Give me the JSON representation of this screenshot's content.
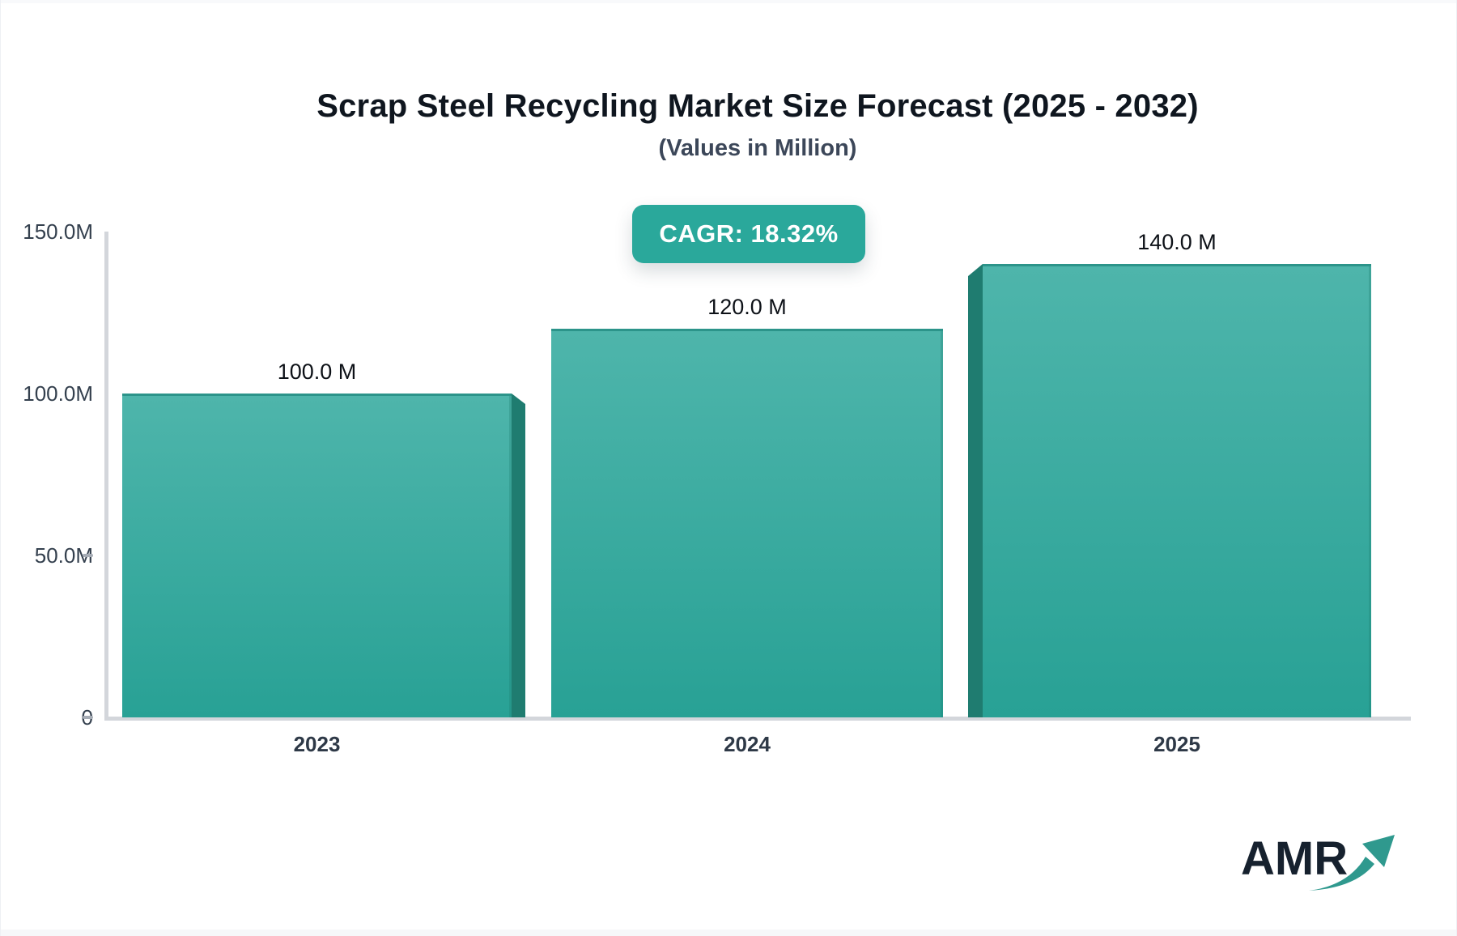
{
  "page": {
    "title": "Scrap Steel Recycling Market Size Forecast (2025 - 2032)",
    "subtitle": "(Values in Million)",
    "cagr_badge": "CAGR: 18.32%",
    "badge_color": "#2aa89b"
  },
  "chart_data": {
    "type": "bar",
    "title": "Scrap Steel Recycling Market Size Forecast (2025 - 2032)",
    "subtitle": "(Values in Million)",
    "categories": [
      "2023",
      "2024",
      "2025"
    ],
    "values": [
      100,
      120,
      140
    ],
    "value_labels": [
      "100.0 M",
      "120.0 M",
      "140.0 M"
    ],
    "unit": "Million",
    "ylim": [
      0,
      150
    ],
    "yticks": [
      "150.0M",
      "100.0M",
      "50.0M",
      "0"
    ],
    "ytick_values": [
      150,
      100,
      50,
      0
    ],
    "ytick_dash": [
      false,
      false,
      true,
      true
    ],
    "grid": false,
    "legend": false,
    "bar_color_top": "#4eb5ab",
    "bar_color_bottom": "#28a195",
    "bar_side_color": "#1f7c70",
    "axis_color": "#d3d6db",
    "tick_color": "#a6acb5"
  },
  "branding": {
    "logo_text": "AMR",
    "logo_color": "#16212e",
    "arrow_color": "#2f998e"
  }
}
